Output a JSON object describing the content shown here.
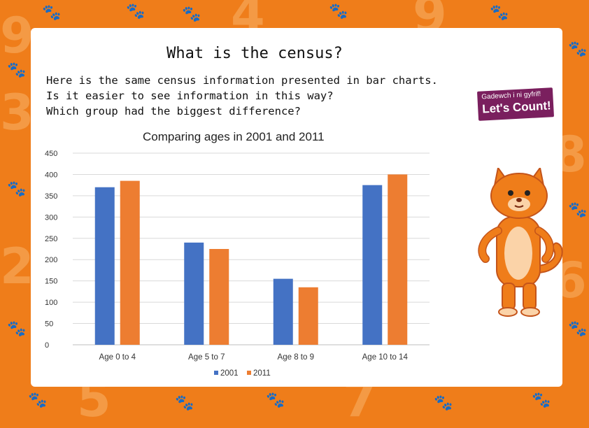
{
  "page": {
    "title": "What is the census?",
    "intro_lines": [
      "Here is the same census information presented in bar charts.",
      "Is it easier to see information in this way?",
      "Which group had the biggest difference?"
    ]
  },
  "logo": {
    "line1": "Gadewch i ni gyfrif!",
    "line2": "Let's Count!"
  },
  "colors": {
    "background": "#ef7d1a",
    "series_2001": "#4472c4",
    "series_2011": "#ed7d31"
  },
  "chart_data": {
    "type": "bar",
    "title": "Comparing ages in 2001 and 2011",
    "categories": [
      "Age 0 to 4",
      "Age 5 to 7",
      "Age 8 to 9",
      "Age 10 to 14"
    ],
    "series": [
      {
        "name": "2001",
        "values": [
          370,
          240,
          155,
          375
        ]
      },
      {
        "name": "2011",
        "values": [
          385,
          225,
          135,
          400
        ]
      }
    ],
    "ylim": [
      0,
      450
    ],
    "yticks": [
      "0",
      "50",
      "100",
      "150",
      "200",
      "250",
      "300",
      "350",
      "400",
      "450"
    ],
    "grid": true,
    "legend": "bottom"
  }
}
